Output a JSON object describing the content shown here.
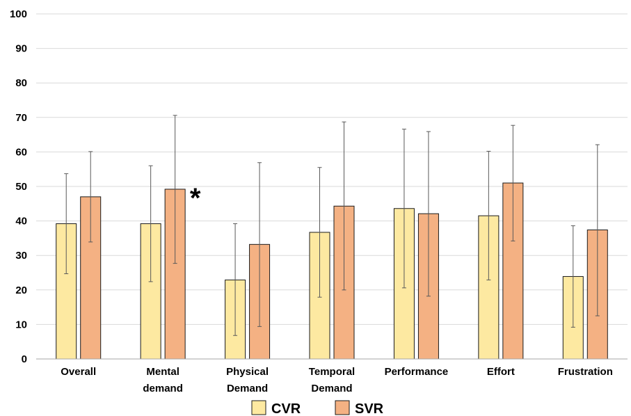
{
  "chart_data": {
    "type": "bar",
    "categories": [
      [
        "Overall"
      ],
      [
        "Mental",
        "demand"
      ],
      [
        "Physical",
        "Demand"
      ],
      [
        "Temporal",
        "Demand"
      ],
      [
        "Performance"
      ],
      [
        "Effort"
      ],
      [
        "Frustration"
      ]
    ],
    "series": [
      {
        "name": "CVR",
        "color": "#FDE9A1",
        "values": [
          39.2,
          39.2,
          22.9,
          36.7,
          43.6,
          41.5,
          23.9
        ],
        "err_low": [
          24.7,
          22.4,
          6.8,
          17.9,
          20.6,
          22.9,
          9.2
        ],
        "err_high": [
          53.7,
          56.0,
          39.2,
          55.5,
          66.6,
          60.2,
          38.6
        ]
      },
      {
        "name": "SVR",
        "color": "#F4B183",
        "values": [
          47.0,
          49.2,
          33.2,
          44.3,
          42.1,
          51.0,
          37.4
        ],
        "err_low": [
          33.9,
          27.7,
          9.4,
          20.0,
          18.2,
          34.2,
          12.5
        ],
        "err_high": [
          60.1,
          70.6,
          56.9,
          68.7,
          65.9,
          67.7,
          62.1
        ]
      }
    ],
    "yticks": [
      "0",
      "10",
      "20",
      "30",
      "40",
      "50",
      "60",
      "70",
      "80",
      "90",
      "100"
    ],
    "ylim": [
      0,
      100
    ],
    "grid": true,
    "legend": "bottom",
    "annotations": [
      {
        "text": "*",
        "category_index": 1
      }
    ],
    "title": "",
    "xlabel": "",
    "ylabel": ""
  }
}
